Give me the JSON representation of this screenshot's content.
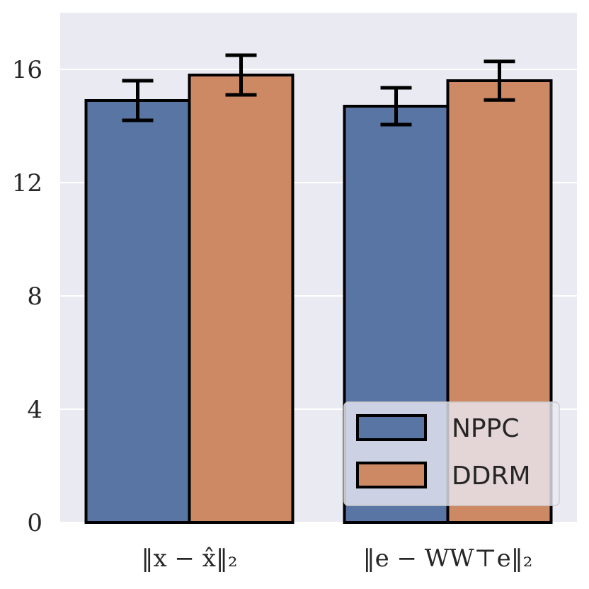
{
  "chart_data": {
    "type": "bar",
    "categories": [
      "‖x − x̂‖₂",
      "‖e − WW⊤e‖₂"
    ],
    "series": [
      {
        "name": "NPPC",
        "color": "#5875a4",
        "values": [
          14.9,
          14.7
        ],
        "errors": [
          0.7,
          0.65
        ]
      },
      {
        "name": "DDRM",
        "color": "#cc8963",
        "values": [
          15.8,
          15.6
        ],
        "errors": [
          0.7,
          0.68
        ]
      }
    ],
    "ylim": [
      0,
      18
    ],
    "yticks": [
      "0",
      "4",
      "8",
      "12",
      "16"
    ],
    "grid": true,
    "legend_position": "lower-right",
    "xlabel": "",
    "ylabel": "",
    "title": ""
  }
}
